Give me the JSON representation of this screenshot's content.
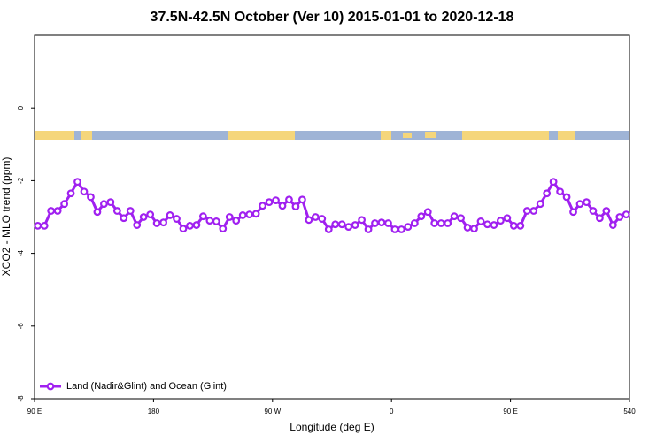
{
  "chart_data": {
    "type": "line",
    "title": "37.5N-42.5N October (Ver 10)   2015-01-01 to 2020-12-18",
    "x_label": "Longitude (deg E)",
    "y_label": "XCO2 - MLO trend (ppm)",
    "x": [
      92.5,
      97.5,
      102.5,
      107.5,
      112.5,
      117.5,
      122.5,
      127.5,
      132.5,
      137.5,
      142.5,
      147.5,
      152.5,
      157.5,
      162.5,
      167.5,
      172.5,
      177.5,
      182.5,
      187.5,
      192.5,
      197.5,
      202.5,
      207.5,
      212.5,
      217.5,
      222.5,
      227.5,
      232.5,
      237.5,
      242.5,
      247.5,
      252.5,
      257.5,
      262.5,
      267.5,
      272.5,
      277.5,
      282.5,
      287.5,
      292.5,
      297.5,
      302.5,
      307.5,
      312.5,
      317.5,
      322.5,
      327.5,
      332.5,
      337.5,
      342.5,
      347.5,
      352.5,
      357.5,
      362.5,
      367.5,
      372.5,
      377.5,
      382.5,
      387.5,
      392.5,
      397.5,
      402.5,
      407.5,
      412.5,
      417.5,
      422.5,
      427.5,
      432.5,
      437.5,
      442.5,
      447.5,
      452.5,
      457.5,
      462.5,
      467.5,
      472.5,
      477.5,
      482.5,
      487.5,
      492.5,
      497.5,
      502.5,
      507.5,
      512.5,
      517.5,
      522.5,
      527.5,
      532.5,
      537.5
    ],
    "series": [
      {
        "name": "Land (Nadir&Glint) and Ocean (Glint)",
        "color": "#a020f0",
        "values": [
          -3.24,
          -3.24,
          -2.83,
          -2.83,
          -2.64,
          -2.35,
          -2.03,
          -2.3,
          -2.45,
          -2.86,
          -2.64,
          -2.59,
          -2.83,
          -3.03,
          -2.83,
          -3.22,
          -3.0,
          -2.93,
          -3.17,
          -3.15,
          -2.95,
          -3.05,
          -3.32,
          -3.24,
          -3.22,
          -2.98,
          -3.1,
          -3.12,
          -3.32,
          -3.0,
          -3.1,
          -2.95,
          -2.93,
          -2.91,
          -2.69,
          -2.59,
          -2.54,
          -2.69,
          -2.52,
          -2.71,
          -2.52,
          -3.08,
          -3.0,
          -3.05,
          -3.34,
          -3.2,
          -3.2,
          -3.27,
          -3.22,
          -3.08,
          -3.34,
          -3.17,
          -3.15,
          -3.17,
          -3.34,
          -3.34,
          -3.27,
          -3.17,
          -2.98,
          -2.86,
          -3.17,
          -3.17,
          -3.17,
          -2.98,
          -3.03,
          -3.29,
          -3.32,
          -3.12,
          -3.2,
          -3.22,
          -3.1,
          -3.03,
          -3.24,
          -3.24,
          -2.83,
          -2.83,
          -2.64,
          -2.35,
          -2.03,
          -2.3,
          -2.45,
          -2.86,
          -2.64,
          -2.59,
          -2.83,
          -3.03,
          -2.83,
          -3.22,
          -3.0,
          -2.93
        ]
      }
    ],
    "xlim": [
      90,
      540
    ],
    "xticks": [
      {
        "value": 90,
        "label": "90 E"
      },
      180,
      {
        "value": 270,
        "label": "90 W"
      },
      {
        "value": 360,
        "label": "0"
      },
      {
        "value": 450,
        "label": "90 E"
      },
      540
    ],
    "ylim": [
      -8,
      2
    ],
    "yticks": [
      -8,
      -6,
      -4,
      -2,
      0
    ],
    "legend": "bottom-left"
  }
}
